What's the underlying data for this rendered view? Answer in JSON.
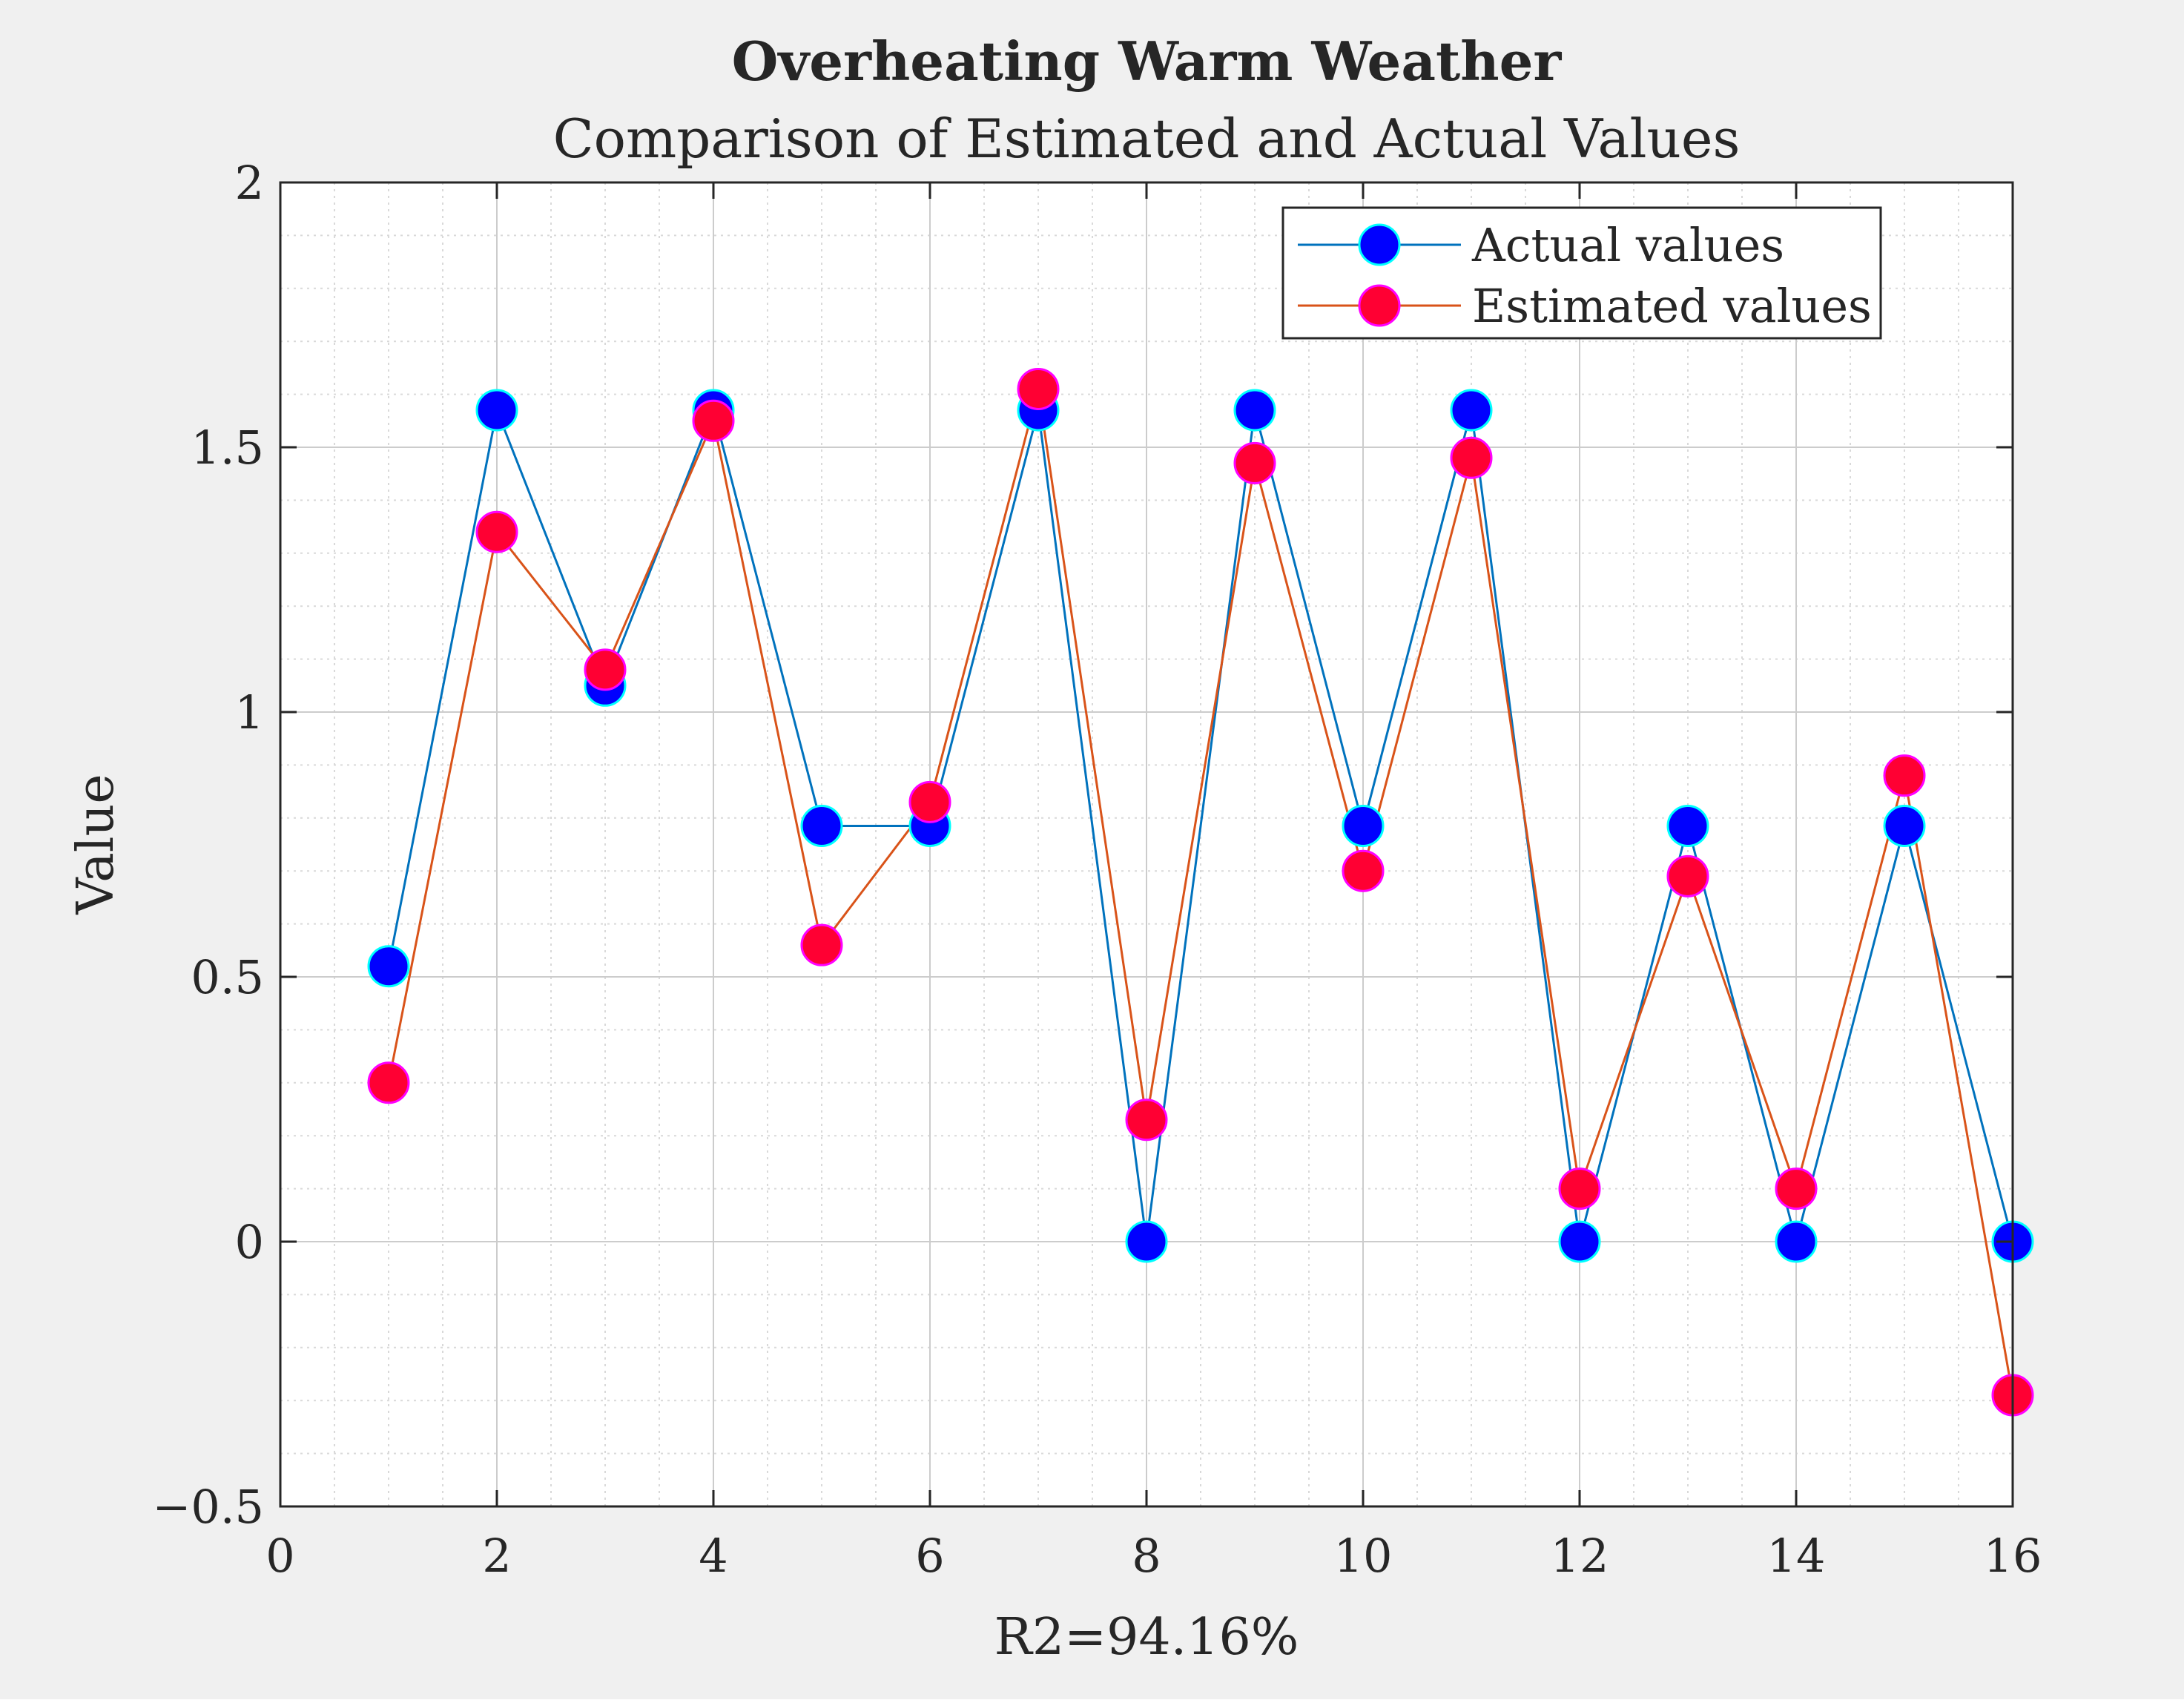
{
  "chart_data": {
    "type": "line",
    "title": "Overheating Warm Weather",
    "subtitle": "Comparison of Estimated and Actual Values",
    "xlabel": "R2=94.16%",
    "ylabel": "Value",
    "xlim": [
      0,
      16
    ],
    "ylim": [
      -0.5,
      2
    ],
    "xticks": [
      "0",
      "2",
      "4",
      "6",
      "8",
      "10",
      "12",
      "14",
      "16"
    ],
    "yticks": [
      "−0.5",
      "0",
      "0.5",
      "1",
      "1.5",
      "2"
    ],
    "grid": "on (major and minor)",
    "legend_position": "top-right",
    "x": [
      1,
      2,
      3,
      4,
      5,
      6,
      7,
      8,
      9,
      10,
      11,
      12,
      13,
      14,
      15,
      16
    ],
    "series": [
      {
        "name": "Actual values",
        "line_color": "#0072bd",
        "marker_color": "#0000ff",
        "values": [
          0.52,
          1.57,
          1.05,
          1.57,
          0.785,
          0.785,
          1.57,
          0.0,
          1.57,
          0.785,
          1.57,
          0.0,
          0.785,
          0.0,
          0.785,
          0.0
        ]
      },
      {
        "name": "Estimated values",
        "line_color": "#d95319",
        "marker_color": "#ff0033",
        "values": [
          0.3,
          1.34,
          1.08,
          1.55,
          0.56,
          0.83,
          1.61,
          0.23,
          1.47,
          0.7,
          1.48,
          0.1,
          0.69,
          0.1,
          0.88,
          -0.29
        ]
      }
    ]
  }
}
